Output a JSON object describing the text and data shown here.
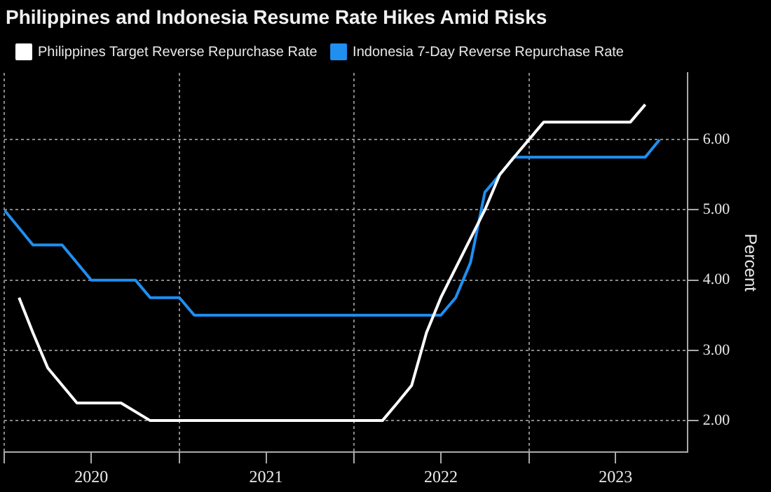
{
  "chart_data": {
    "type": "line",
    "title": "Philippines and Indonesia Resume Rate Hikes Amid Risks",
    "ylabel": "Percent",
    "legend": "top left",
    "grid": true,
    "marker": "none",
    "line_style": "solid",
    "xlim": [
      "2020-01-01",
      "2023-11-28"
    ],
    "xticks": [
      {
        "value": "2020-01-01",
        "label": null
      },
      {
        "value": "2020-07-01",
        "label": "2020"
      },
      {
        "value": "2021-01-01",
        "label": null
      },
      {
        "value": "2021-07-01",
        "label": "2021"
      },
      {
        "value": "2022-01-01",
        "label": null
      },
      {
        "value": "2022-07-01",
        "label": "2022"
      },
      {
        "value": "2023-01-01",
        "label": null
      },
      {
        "value": "2023-07-01",
        "label": "2023"
      }
    ],
    "ylim": [
      1.55,
      6.95
    ],
    "yticks": [
      {
        "value": 2,
        "label": "2.00"
      },
      {
        "value": 3,
        "label": "3.00"
      },
      {
        "value": 4,
        "label": "4.00"
      },
      {
        "value": 5,
        "label": "5.00"
      },
      {
        "value": 6,
        "label": "6.00"
      }
    ],
    "series": [
      {
        "name": "Philippines Target Reverse Repurchase Rate",
        "color": "#ffffff",
        "x": [
          "2020-02",
          "2020-03",
          "2020-04",
          "2020-06",
          "2020-09",
          "2020-11",
          "2022-03",
          "2022-04",
          "2022-05",
          "2022-06",
          "2022-07",
          "2022-10",
          "2022-11",
          "2022-12",
          "2023-02",
          "2023-08",
          "2023-09"
        ],
        "values": [
          3.75,
          3.25,
          2.75,
          2.25,
          2.25,
          2.0,
          2.0,
          2.25,
          2.5,
          3.25,
          3.75,
          5.0,
          5.5,
          5.75,
          6.25,
          6.25,
          6.5
        ]
      },
      {
        "name": "Indonesia 7-Day Reverse Repurchase Rate",
        "color": "#1f8ff0",
        "x": [
          "2020-01",
          "2020-03",
          "2020-05",
          "2020-07",
          "2020-10",
          "2020-11",
          "2021-01",
          "2021-02",
          "2022-07",
          "2022-08",
          "2022-09",
          "2022-10",
          "2022-11",
          "2022-12",
          "2023-09",
          "2023-10"
        ],
        "values": [
          5.0,
          4.5,
          4.5,
          4.0,
          4.0,
          3.75,
          3.75,
          3.5,
          3.5,
          3.75,
          4.25,
          5.25,
          5.5,
          5.75,
          5.75,
          6.0
        ]
      }
    ]
  }
}
